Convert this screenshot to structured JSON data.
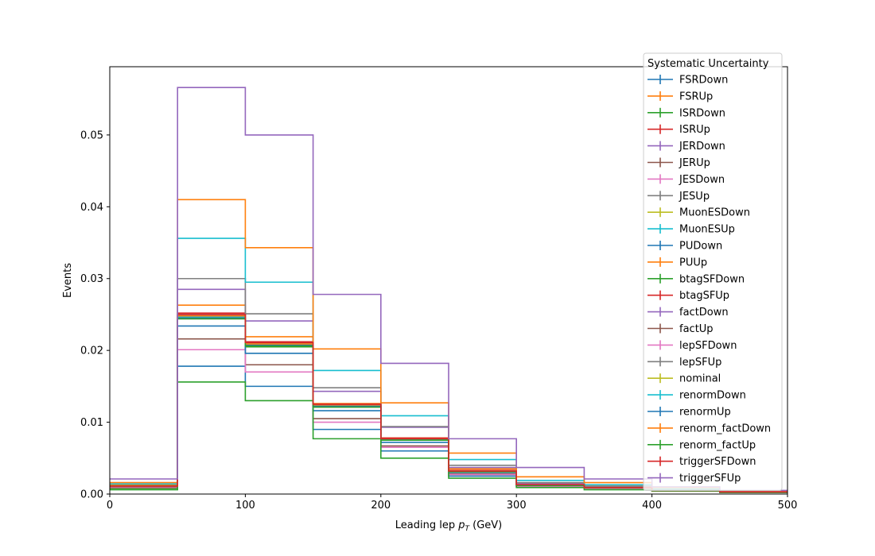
{
  "chart_data": {
    "type": "step",
    "title": "",
    "xlabel_prefix": "Leading lep ",
    "xlabel_var": "p",
    "xlabel_sub": "T",
    "xlabel_suffix": " (GeV)",
    "ylabel": "Events",
    "xlim": [
      0,
      500
    ],
    "ylim": [
      0,
      0.0595
    ],
    "xticks": [
      0,
      100,
      200,
      300,
      400,
      500
    ],
    "yticks": [
      0.0,
      0.01,
      0.02,
      0.03,
      0.04,
      0.05
    ],
    "ytick_labels": [
      "0.00",
      "0.01",
      "0.02",
      "0.03",
      "0.04",
      "0.05"
    ],
    "bin_edges": [
      0,
      50,
      100,
      150,
      200,
      250,
      300,
      350,
      400,
      450,
      500
    ],
    "grid": false,
    "legend_title": "Systematic Uncertainty",
    "legend_position": "top-right",
    "series": [
      {
        "name": "FSRDown",
        "color": "#1f77b4",
        "values": [
          0.0012,
          0.0178,
          0.015,
          0.009,
          0.006,
          0.0025,
          0.001,
          0.0008,
          0.0005,
          0.0003
        ]
      },
      {
        "name": "FSRUp",
        "color": "#ff7f0e",
        "values": [
          0.0013,
          0.0263,
          0.0219,
          0.0126,
          0.0078,
          0.0035,
          0.0015,
          0.0011,
          0.0006,
          0.0003
        ]
      },
      {
        "name": "ISRDown",
        "color": "#2ca02c",
        "values": [
          0.0008,
          0.0244,
          0.0205,
          0.0122,
          0.0076,
          0.0031,
          0.0012,
          0.0008,
          0.0005,
          0.0003
        ]
      },
      {
        "name": "ISRUp",
        "color": "#d62728",
        "values": [
          0.0009,
          0.0252,
          0.0212,
          0.0125,
          0.0078,
          0.0033,
          0.0013,
          0.0009,
          0.0005,
          0.0003
        ]
      },
      {
        "name": "JERDown",
        "color": "#9467bd",
        "values": [
          0.001,
          0.0285,
          0.0241,
          0.0143,
          0.0093,
          0.0037,
          0.0014,
          0.001,
          0.0006,
          0.0003
        ]
      },
      {
        "name": "JERUp",
        "color": "#8c564b",
        "values": [
          0.0009,
          0.0216,
          0.018,
          0.0105,
          0.0067,
          0.0028,
          0.0011,
          0.0008,
          0.0005,
          0.0003
        ]
      },
      {
        "name": "JESDown",
        "color": "#e377c2",
        "values": [
          0.001,
          0.0201,
          0.017,
          0.01,
          0.0065,
          0.0027,
          0.0011,
          0.0008,
          0.0005,
          0.0003
        ]
      },
      {
        "name": "JESUp",
        "color": "#7f7f7f",
        "values": [
          0.0011,
          0.03,
          0.0251,
          0.0148,
          0.0094,
          0.004,
          0.0016,
          0.0011,
          0.0006,
          0.0003
        ]
      },
      {
        "name": "MuonESDown",
        "color": "#bcbd22",
        "values": [
          0.0011,
          0.0246,
          0.0208,
          0.0123,
          0.0076,
          0.0032,
          0.0013,
          0.0009,
          0.0005,
          0.0003
        ]
      },
      {
        "name": "MuonESUp",
        "color": "#17becf",
        "values": [
          0.0014,
          0.0356,
          0.0295,
          0.0172,
          0.0109,
          0.0048,
          0.0019,
          0.0013,
          0.0007,
          0.0004
        ]
      },
      {
        "name": "PUDown",
        "color": "#1f77b4",
        "values": [
          0.0011,
          0.0234,
          0.0196,
          0.0116,
          0.0072,
          0.003,
          0.0012,
          0.0009,
          0.0005,
          0.0003
        ]
      },
      {
        "name": "PUUp",
        "color": "#ff7f0e",
        "values": [
          0.0016,
          0.041,
          0.0343,
          0.0202,
          0.0127,
          0.0057,
          0.0024,
          0.0016,
          0.0009,
          0.0004
        ]
      },
      {
        "name": "btagSFDown",
        "color": "#2ca02c",
        "values": [
          0.0006,
          0.0156,
          0.013,
          0.0077,
          0.005,
          0.0022,
          0.0009,
          0.0006,
          0.0004,
          0.0002
        ]
      },
      {
        "name": "btagSFUp",
        "color": "#d62728",
        "values": [
          0.0011,
          0.0248,
          0.0209,
          0.0124,
          0.0077,
          0.0032,
          0.0013,
          0.0009,
          0.0005,
          0.0003
        ]
      },
      {
        "name": "factDown",
        "color": "#9467bd",
        "values": [
          0.0011,
          0.0247,
          0.0208,
          0.0123,
          0.0076,
          0.0032,
          0.0013,
          0.0009,
          0.0005,
          0.0003
        ]
      },
      {
        "name": "factUp",
        "color": "#8c564b",
        "values": [
          0.0011,
          0.0245,
          0.0207,
          0.0122,
          0.0075,
          0.0031,
          0.0013,
          0.0009,
          0.0005,
          0.0003
        ]
      },
      {
        "name": "lepSFDown",
        "color": "#e377c2",
        "values": [
          0.0011,
          0.0244,
          0.0206,
          0.0121,
          0.0075,
          0.0031,
          0.0012,
          0.0009,
          0.0005,
          0.0003
        ]
      },
      {
        "name": "lepSFUp",
        "color": "#7f7f7f",
        "values": [
          0.0011,
          0.0249,
          0.021,
          0.0124,
          0.0077,
          0.0032,
          0.0013,
          0.0009,
          0.0005,
          0.0003
        ]
      },
      {
        "name": "nominal",
        "color": "#bcbd22",
        "values": [
          0.0011,
          0.0246,
          0.0208,
          0.0123,
          0.0076,
          0.0032,
          0.0013,
          0.0009,
          0.0005,
          0.0003
        ]
      },
      {
        "name": "renormDown",
        "color": "#17becf",
        "values": [
          0.0011,
          0.0247,
          0.0208,
          0.0123,
          0.0076,
          0.0032,
          0.0013,
          0.0009,
          0.0005,
          0.0003
        ]
      },
      {
        "name": "renormUp",
        "color": "#1f77b4",
        "values": [
          0.0011,
          0.0245,
          0.0207,
          0.0122,
          0.0075,
          0.0031,
          0.0013,
          0.0009,
          0.0005,
          0.0003
        ]
      },
      {
        "name": "renorm_factDown",
        "color": "#ff7f0e",
        "values": [
          0.0011,
          0.0248,
          0.0209,
          0.0124,
          0.0077,
          0.0032,
          0.0013,
          0.0009,
          0.0005,
          0.0003
        ]
      },
      {
        "name": "renorm_factUp",
        "color": "#2ca02c",
        "values": [
          0.0011,
          0.0244,
          0.0206,
          0.0121,
          0.0075,
          0.0031,
          0.0012,
          0.0009,
          0.0005,
          0.0003
        ]
      },
      {
        "name": "triggerSFDown",
        "color": "#d62728",
        "values": [
          0.0011,
          0.025,
          0.0211,
          0.0125,
          0.0077,
          0.0032,
          0.0013,
          0.0009,
          0.0005,
          0.0003
        ]
      },
      {
        "name": "triggerSFUp",
        "color": "#9467bd",
        "values": [
          0.0021,
          0.0566,
          0.05,
          0.0278,
          0.0182,
          0.0077,
          0.0037,
          0.0021,
          0.001,
          0.0005
        ]
      }
    ]
  }
}
